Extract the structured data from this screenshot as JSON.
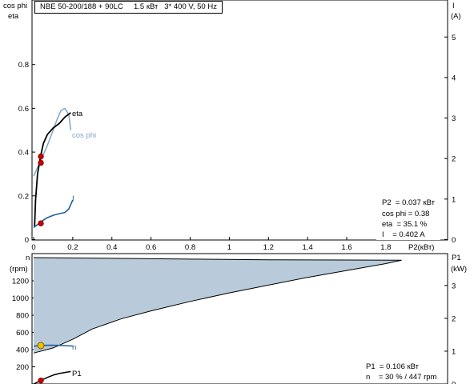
{
  "header": {
    "title": "NBE 50-200/188 + 90LC     1.5 кВт   3* 400 V, 50 Hz"
  },
  "colors": {
    "eta": "#000000",
    "cos_phi": "#7fa6c8",
    "current": "#1f5f95",
    "fill": "#b9cadb",
    "marker_red": "#cc0000",
    "marker_yellow": "#f0c000"
  },
  "chart_data": [
    {
      "type": "line",
      "panel": "top",
      "left_axis": {
        "labels": [
          "cos phi",
          "eta"
        ],
        "ticks": [
          0,
          0.2,
          0.4,
          0.6,
          0.8
        ],
        "range": [
          0,
          1.0
        ]
      },
      "right_axis": {
        "labels": [
          "I",
          "(A)"
        ],
        "ticks": [
          0,
          1,
          2,
          3,
          4,
          5
        ],
        "range": [
          0,
          5.4
        ]
      },
      "x_axis": {
        "label": "P2(кВт)",
        "ticks": [
          0,
          0.2,
          0.4,
          0.6,
          0.8,
          1,
          1.2,
          1.4,
          1.6,
          1.8
        ],
        "range": [
          0,
          2.05
        ]
      },
      "series": [
        {
          "name": "eta",
          "axis": "left",
          "x": [
            0.005,
            0.01,
            0.02,
            0.035,
            0.05,
            0.07,
            0.1,
            0.13,
            0.16,
            0.19
          ],
          "y": [
            0.06,
            0.18,
            0.3,
            0.38,
            0.44,
            0.48,
            0.51,
            0.53,
            0.56,
            0.58
          ]
        },
        {
          "name": "cos phi",
          "axis": "left",
          "x": [
            0.0,
            0.02,
            0.04,
            0.07,
            0.1,
            0.12,
            0.14,
            0.16,
            0.18,
            0.19
          ],
          "y": [
            0.29,
            0.33,
            0.37,
            0.43,
            0.5,
            0.55,
            0.59,
            0.6,
            0.57,
            0.5
          ]
        },
        {
          "name": "I",
          "axis": "right",
          "x": [
            0.0,
            0.02,
            0.04,
            0.07,
            0.1,
            0.13,
            0.16,
            0.18,
            0.2
          ],
          "y": [
            0.3,
            0.37,
            0.45,
            0.54,
            0.6,
            0.64,
            0.67,
            0.76,
            0.98
          ]
        }
      ],
      "markers": [
        {
          "series": "eta",
          "x": 0.037,
          "y": 0.351
        },
        {
          "series": "cos phi",
          "x": 0.037,
          "y": 0.38
        },
        {
          "series": "I",
          "x": 0.037,
          "y": 0.402
        }
      ],
      "readout": [
        {
          "label": "P2",
          "text": "P2  = 0.037 кВт"
        },
        {
          "label": "cos phi",
          "text": "cos phi = 0.38"
        },
        {
          "label": "eta",
          "text": "eta  = 35.1 %"
        },
        {
          "label": "I",
          "text": "I    = 0.402 A"
        }
      ]
    },
    {
      "type": "area",
      "panel": "bottom",
      "left_axis": {
        "labels": [
          "n",
          "(rpm)"
        ],
        "ticks": [
          200,
          400,
          600,
          800,
          1000,
          1200
        ],
        "range": [
          0,
          1470
        ]
      },
      "right_axis": {
        "labels": [
          "P1",
          "(kW)"
        ],
        "ticks": [
          0,
          1,
          2,
          3
        ],
        "range": [
          0,
          3.85
        ]
      },
      "series": [
        {
          "name": "n",
          "axis": "left",
          "kind": "area-boundary",
          "x": [
            0.0,
            0.1,
            0.2,
            0.3,
            0.45,
            0.6,
            0.8,
            1.0,
            1.2,
            1.4,
            1.6,
            1.8,
            1.88
          ],
          "y": [
            360,
            420,
            520,
            640,
            760,
            850,
            960,
            1060,
            1150,
            1240,
            1320,
            1400,
            1440
          ]
        },
        {
          "name": "n",
          "axis": "left",
          "kind": "line",
          "x": [
            0.0,
            0.02,
            0.04,
            0.06,
            0.09,
            0.12,
            0.15,
            0.2
          ],
          "y": [
            440,
            445,
            448,
            449,
            450,
            449,
            447,
            442
          ]
        },
        {
          "name": "P1",
          "axis": "right",
          "x": [
            0.0,
            0.037,
            0.07,
            0.1,
            0.13,
            0.16,
            0.19
          ],
          "y": [
            0.0,
            0.106,
            0.2,
            0.27,
            0.32,
            0.35,
            0.38
          ]
        }
      ],
      "upper_boundary": {
        "x": [
          0.0,
          0.4,
          0.8,
          1.2,
          1.6,
          1.88
        ],
        "y": [
          1470,
          1462,
          1452,
          1445,
          1442,
          1440
        ]
      },
      "markers": [
        {
          "series": "n",
          "x": 0.037,
          "y": 447,
          "color": "yellow"
        },
        {
          "series": "P1",
          "x": 0.037,
          "y": 0.106,
          "color": "red"
        }
      ],
      "readout": [
        {
          "label": "P1",
          "text": "P1  = 0.106 кВт"
        },
        {
          "label": "n",
          "text": "n    = 30 % / 447 rpm"
        }
      ]
    }
  ]
}
